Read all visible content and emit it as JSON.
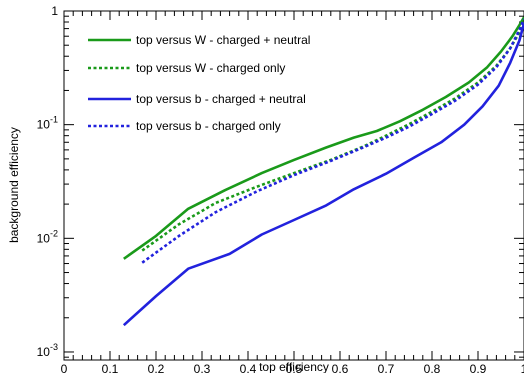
{
  "chart_data": {
    "type": "line",
    "title": "",
    "xlabel": "top efficiency",
    "ylabel": "background efficiency",
    "xlim": [
      0,
      1
    ],
    "ylim": [
      0.00085,
      1
    ],
    "yscale": "log",
    "grid": false,
    "legend_position": "top-left",
    "x_tick_labels": [
      "0",
      "0.1",
      "0.2",
      "0.3",
      "0.4",
      "0.5",
      "0.6",
      "0.7",
      "0.8",
      "0.9",
      "1"
    ],
    "x_ticks": [
      0,
      0.1,
      0.2,
      0.3,
      0.4,
      0.5,
      0.6,
      0.7,
      0.8,
      0.9,
      1
    ],
    "y_ticks": [
      {
        "value": 0.001,
        "base": "10",
        "exp": "-3"
      },
      {
        "value": 0.01,
        "base": "10",
        "exp": "-2"
      },
      {
        "value": 0.1,
        "base": "10",
        "exp": "-1"
      },
      {
        "value": 1,
        "base": "1",
        "exp": ""
      }
    ],
    "series": [
      {
        "name": "top versus W - charged + neutral",
        "color": "#1a9a1a",
        "dash": "solid",
        "x": [
          0.13,
          0.2,
          0.27,
          0.35,
          0.43,
          0.5,
          0.57,
          0.63,
          0.68,
          0.73,
          0.78,
          0.83,
          0.88,
          0.92,
          0.95,
          0.975,
          0.99,
          1.0
        ],
        "y": [
          0.0066,
          0.0105,
          0.0182,
          0.0265,
          0.0375,
          0.049,
          0.063,
          0.077,
          0.088,
          0.107,
          0.135,
          0.175,
          0.235,
          0.32,
          0.44,
          0.6,
          0.75,
          0.88
        ]
      },
      {
        "name": "top versus W - charged only",
        "color": "#1a9a1a",
        "dash": "dotted",
        "x": [
          0.17,
          0.25,
          0.33,
          0.42,
          0.5,
          0.58,
          0.65,
          0.7,
          0.75,
          0.8,
          0.85,
          0.9,
          0.94,
          0.97,
          0.99,
          1.0
        ],
        "y": [
          0.0078,
          0.0133,
          0.0205,
          0.0285,
          0.0375,
          0.049,
          0.064,
          0.08,
          0.101,
          0.13,
          0.17,
          0.235,
          0.33,
          0.47,
          0.65,
          0.82
        ]
      },
      {
        "name": "top versus b - charged + neutral",
        "color": "#2222dd",
        "dash": "solid",
        "x": [
          0.13,
          0.2,
          0.27,
          0.36,
          0.43,
          0.5,
          0.57,
          0.63,
          0.7,
          0.76,
          0.82,
          0.87,
          0.91,
          0.945,
          0.97,
          0.99,
          1.0
        ],
        "y": [
          0.00172,
          0.0031,
          0.0054,
          0.0073,
          0.0108,
          0.0145,
          0.0195,
          0.027,
          0.037,
          0.051,
          0.07,
          0.1,
          0.145,
          0.22,
          0.35,
          0.55,
          0.78
        ]
      },
      {
        "name": "top versus b - charged only",
        "color": "#2222dd",
        "dash": "dotted",
        "x": [
          0.17,
          0.25,
          0.33,
          0.42,
          0.5,
          0.58,
          0.65,
          0.7,
          0.75,
          0.8,
          0.85,
          0.9,
          0.94,
          0.97,
          0.99,
          1.0
        ],
        "y": [
          0.0061,
          0.0105,
          0.017,
          0.026,
          0.036,
          0.048,
          0.063,
          0.077,
          0.096,
          0.124,
          0.162,
          0.225,
          0.32,
          0.47,
          0.68,
          0.85
        ]
      }
    ]
  }
}
